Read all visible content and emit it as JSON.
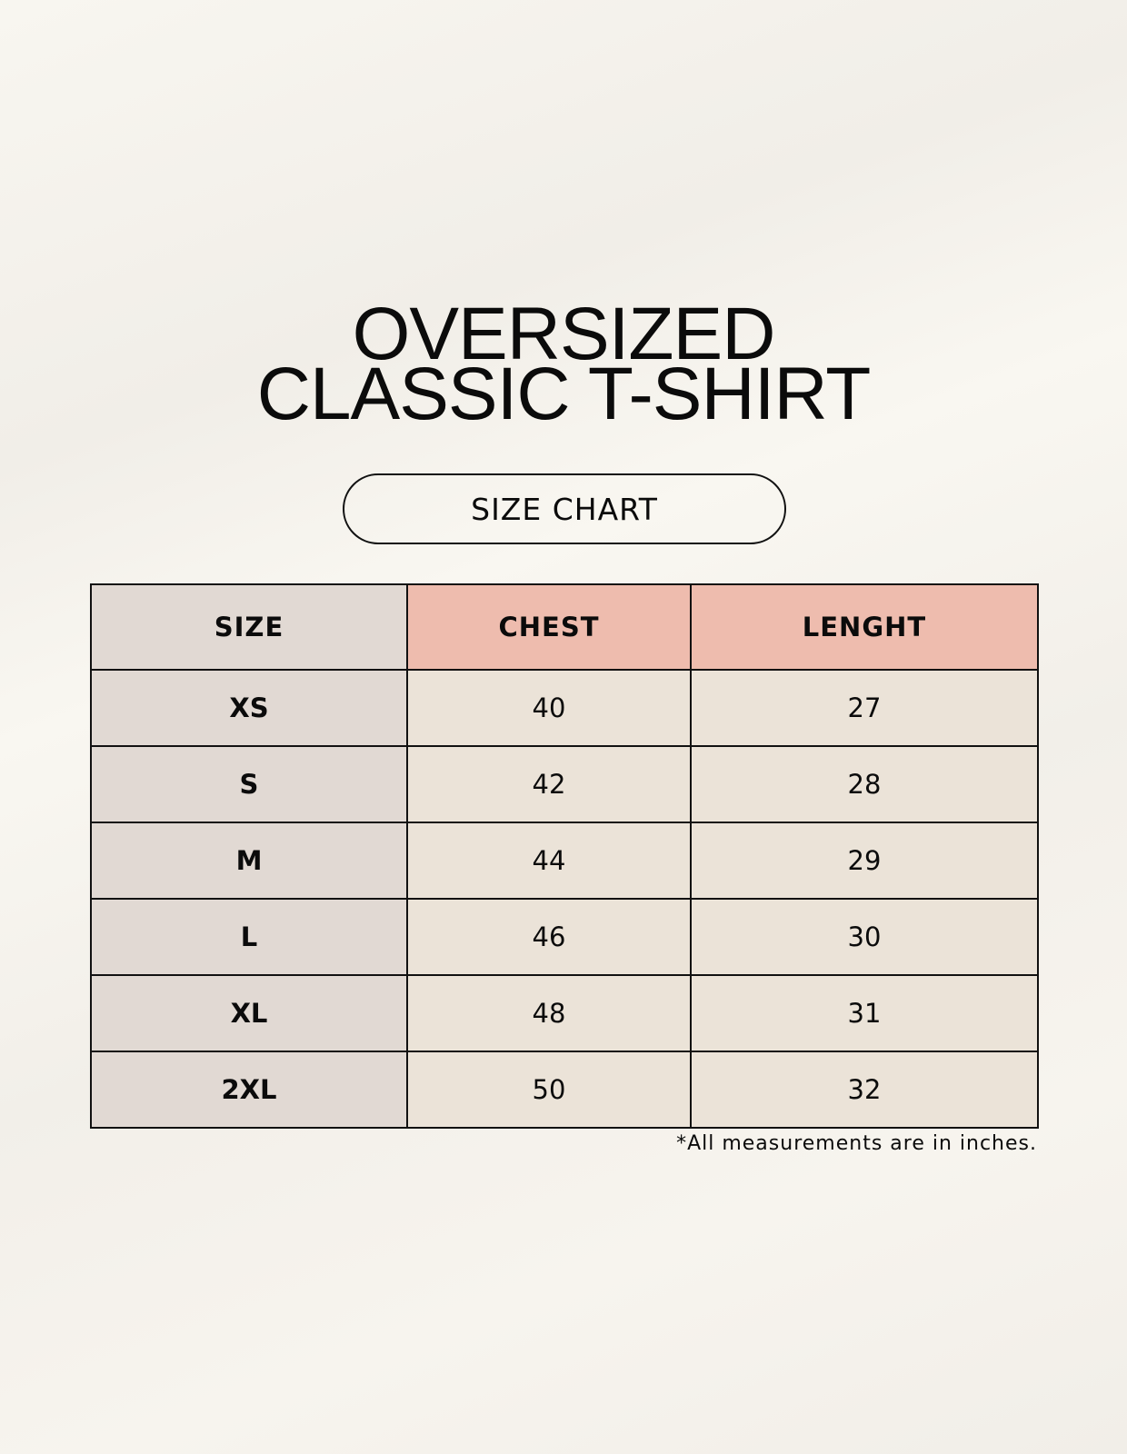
{
  "title": {
    "line1": "OVERSIZED",
    "line2": "CLASSIC T-SHIRT"
  },
  "badge": "SIZE CHART",
  "table": {
    "headers": [
      "SIZE",
      "CHEST",
      "LENGHT"
    ],
    "rows": [
      [
        "XS",
        "40",
        "27"
      ],
      [
        "S",
        "42",
        "28"
      ],
      [
        "M",
        "44",
        "29"
      ],
      [
        "L",
        "46",
        "30"
      ],
      [
        "XL",
        "48",
        "31"
      ],
      [
        "2XL",
        "50",
        "32"
      ]
    ]
  },
  "footnote": "*All measurements are in inches.",
  "colors": {
    "size_column": "#e1d9d3",
    "header_accent": "#eebcae",
    "cell": "#ebe3d8"
  }
}
